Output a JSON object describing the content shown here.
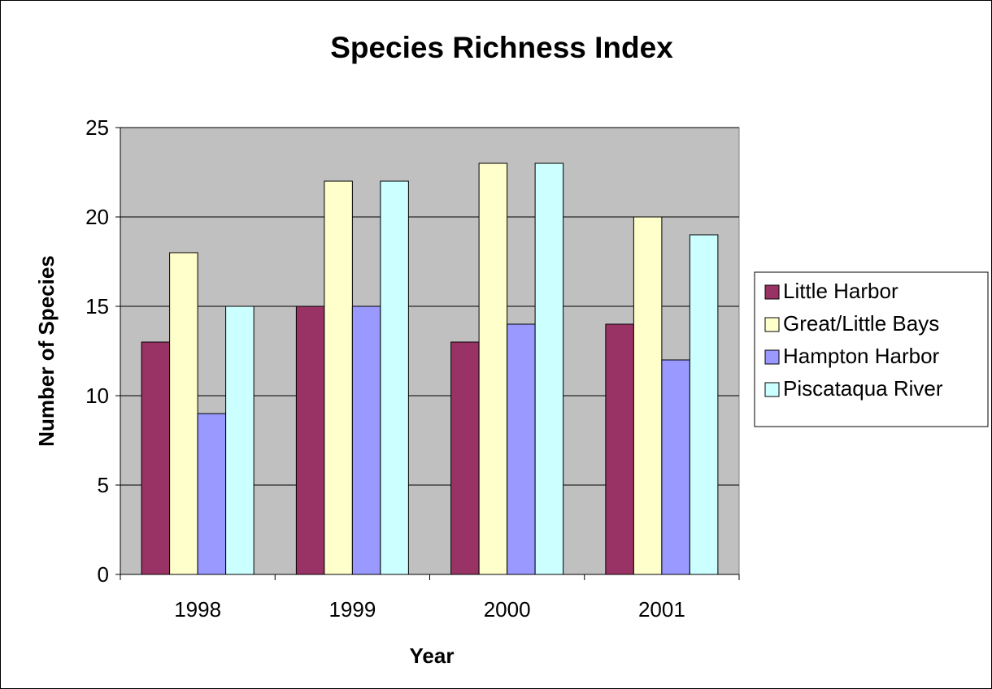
{
  "chart_data": {
    "type": "bar",
    "title": "Species Richness Index",
    "xlabel": "Year",
    "ylabel": "Number of Species",
    "categories": [
      "1998",
      "1999",
      "2000",
      "2001"
    ],
    "series": [
      {
        "name": "Little Harbor",
        "values": [
          13,
          15,
          13,
          14
        ],
        "color": "#993366"
      },
      {
        "name": "Great/Little Bays",
        "values": [
          18,
          22,
          23,
          20
        ],
        "color": "#FFFFCC"
      },
      {
        "name": "Hampton Harbor",
        "values": [
          9,
          15,
          14,
          12
        ],
        "color": "#9999FF"
      },
      {
        "name": "Piscataqua River",
        "values": [
          15,
          22,
          23,
          19
        ],
        "color": "#CCFFFF"
      }
    ],
    "ylim": [
      0,
      25
    ],
    "yticks": [
      0,
      5,
      10,
      15,
      20,
      25
    ],
    "grid": true,
    "plot_background": "#C0C0C0",
    "legend_position": "right"
  }
}
